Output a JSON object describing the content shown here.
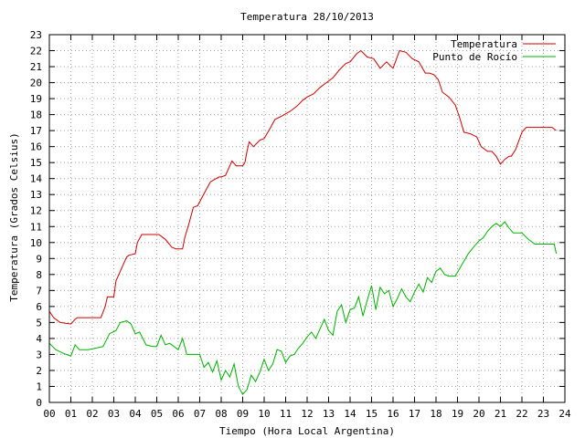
{
  "chart_data": {
    "type": "line",
    "title": "Temperatura 28/10/2013",
    "xlabel": "Tiempo (Hora Local Argentina)",
    "ylabel": "Temperatura (Grados Celsius)",
    "xlim": [
      0,
      24
    ],
    "ylim": [
      0,
      23
    ],
    "x_ticks": [
      "00",
      "01",
      "02",
      "03",
      "04",
      "05",
      "06",
      "07",
      "08",
      "09",
      "10",
      "11",
      "12",
      "13",
      "14",
      "15",
      "16",
      "17",
      "18",
      "19",
      "20",
      "21",
      "22",
      "23",
      "24"
    ],
    "y_ticks": [
      "0",
      "1",
      "2",
      "3",
      "4",
      "5",
      "6",
      "7",
      "8",
      "9",
      "10",
      "11",
      "12",
      "13",
      "14",
      "15",
      "16",
      "17",
      "18",
      "19",
      "20",
      "21",
      "22",
      "23"
    ],
    "grid": true,
    "legend_position": "top-right",
    "series": [
      {
        "name": "Temperatura",
        "color": "#cc0000",
        "x": [
          0,
          0.2,
          0.5,
          1.0,
          1.2,
          1.3,
          2.4,
          2.6,
          2.7,
          3.0,
          3.1,
          3.4,
          3.6,
          3.7,
          4.0,
          4.1,
          4.3,
          4.7,
          5.1,
          5.4,
          5.7,
          5.9,
          6.2,
          6.3,
          6.5,
          6.7,
          6.9,
          7.3,
          7.5,
          7.9,
          8.0,
          8.2,
          8.5,
          8.7,
          9.0,
          9.1,
          9.2,
          9.3,
          9.5,
          9.8,
          10.0,
          10.3,
          10.5,
          10.8,
          11.2,
          11.5,
          11.8,
          12.0,
          12.3,
          12.6,
          12.9,
          13.2,
          13.5,
          13.8,
          14.0,
          14.3,
          14.5,
          14.8,
          15.1,
          15.4,
          15.7,
          16.0,
          16.3,
          16.6,
          16.9,
          17.2,
          17.5,
          17.7,
          17.9,
          18.1,
          18.3,
          18.6,
          18.9,
          19.1,
          19.3,
          19.6,
          19.9,
          20.1,
          20.4,
          20.6,
          20.8,
          21.0,
          21.2,
          21.4,
          21.5,
          21.7,
          22.0,
          22.2,
          22.4,
          22.6,
          23.0,
          23.4,
          23.6
        ],
        "values": [
          5.7,
          5.3,
          5.0,
          4.9,
          5.2,
          5.3,
          5.3,
          6.0,
          6.6,
          6.6,
          7.6,
          8.5,
          9.1,
          9.2,
          9.3,
          10.0,
          10.5,
          10.5,
          10.5,
          10.2,
          9.7,
          9.6,
          9.6,
          10.3,
          11.2,
          12.2,
          12.3,
          13.3,
          13.8,
          14.1,
          14.1,
          14.2,
          15.1,
          14.8,
          14.8,
          15.0,
          15.7,
          16.3,
          16.0,
          16.4,
          16.5,
          17.2,
          17.7,
          17.9,
          18.2,
          18.5,
          18.9,
          19.1,
          19.3,
          19.7,
          20.0,
          20.3,
          20.8,
          21.2,
          21.3,
          21.8,
          22.0,
          21.6,
          21.5,
          20.9,
          21.3,
          20.9,
          22.0,
          21.9,
          21.5,
          21.3,
          20.6,
          20.6,
          20.5,
          20.2,
          19.4,
          19.1,
          18.6,
          17.8,
          16.9,
          16.8,
          16.6,
          16.0,
          15.7,
          15.7,
          15.4,
          14.9,
          15.2,
          15.4,
          15.4,
          15.8,
          16.9,
          17.2,
          17.2,
          17.2,
          17.2,
          17.2,
          17.0
        ]
      },
      {
        "name": "Punto de Rocío",
        "color": "#00b000",
        "x": [
          0,
          0.3,
          0.6,
          1.0,
          1.2,
          1.4,
          1.8,
          2.2,
          2.5,
          2.8,
          3.1,
          3.3,
          3.6,
          3.8,
          4.0,
          4.2,
          4.5,
          4.8,
          5.0,
          5.2,
          5.4,
          5.6,
          5.8,
          6.0,
          6.2,
          6.4,
          6.7,
          7.0,
          7.2,
          7.4,
          7.6,
          7.8,
          8.0,
          8.2,
          8.4,
          8.6,
          8.8,
          9.0,
          9.2,
          9.4,
          9.6,
          9.8,
          10.0,
          10.2,
          10.4,
          10.6,
          10.8,
          11.0,
          11.2,
          11.4,
          11.6,
          11.8,
          12.0,
          12.2,
          12.4,
          12.6,
          12.8,
          13.0,
          13.2,
          13.4,
          13.6,
          13.8,
          14.0,
          14.2,
          14.4,
          14.6,
          14.8,
          15.0,
          15.2,
          15.4,
          15.6,
          15.8,
          16.0,
          16.2,
          16.4,
          16.6,
          16.8,
          17.0,
          17.2,
          17.4,
          17.6,
          17.8,
          18.0,
          18.2,
          18.4,
          18.6,
          18.9,
          19.2,
          19.5,
          19.8,
          20.0,
          20.2,
          20.4,
          20.6,
          20.8,
          21.0,
          21.2,
          21.4,
          21.6,
          21.8,
          22.0,
          22.3,
          22.6,
          23.0,
          23.3,
          23.5,
          23.6
        ],
        "values": [
          3.7,
          3.3,
          3.1,
          2.9,
          3.6,
          3.3,
          3.3,
          3.4,
          3.5,
          4.3,
          4.5,
          5.0,
          5.1,
          4.9,
          4.3,
          4.4,
          3.6,
          3.5,
          3.5,
          4.2,
          3.6,
          3.7,
          3.5,
          3.3,
          4.0,
          3.0,
          3.0,
          3.0,
          2.2,
          2.5,
          1.9,
          2.6,
          1.4,
          2.0,
          1.6,
          2.4,
          1.0,
          0.5,
          0.8,
          1.7,
          1.3,
          1.9,
          2.7,
          2.0,
          2.4,
          3.3,
          3.2,
          2.5,
          2.9,
          3.0,
          3.4,
          3.7,
          4.1,
          4.4,
          4.0,
          4.6,
          5.2,
          4.5,
          4.2,
          5.7,
          6.1,
          5.0,
          5.8,
          5.9,
          6.6,
          5.4,
          6.4,
          7.3,
          5.8,
          7.2,
          6.8,
          7.0,
          6.0,
          6.5,
          7.1,
          6.6,
          6.3,
          6.9,
          7.4,
          6.9,
          7.8,
          7.5,
          8.2,
          8.4,
          8.0,
          7.9,
          7.9,
          8.6,
          9.3,
          9.8,
          10.1,
          10.3,
          10.7,
          11.0,
          11.2,
          11.0,
          11.3,
          10.9,
          10.6,
          10.6,
          10.6,
          10.2,
          9.9,
          9.9,
          9.9,
          9.9,
          9.3
        ]
      }
    ]
  }
}
